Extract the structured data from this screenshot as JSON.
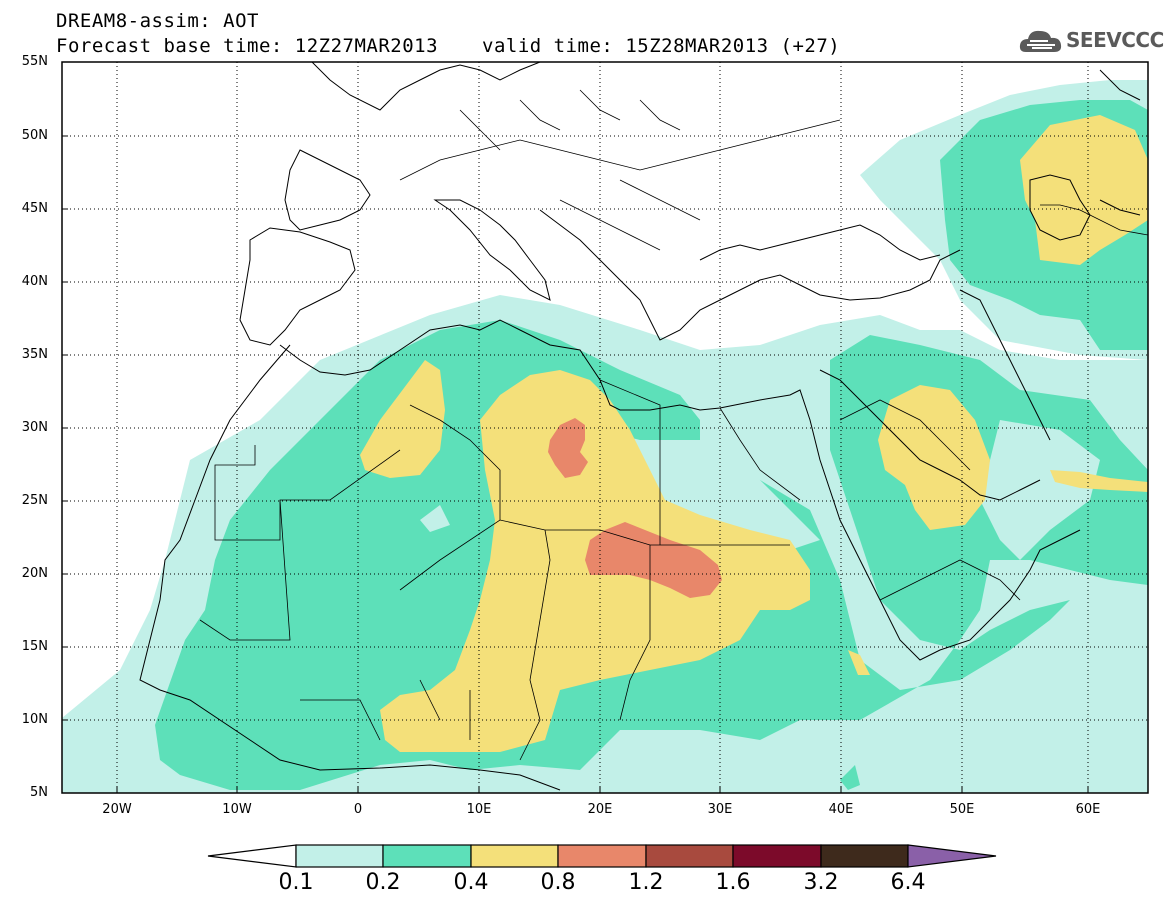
{
  "header": {
    "product": "DREAM8-assim: AOT",
    "base_time_label": "Forecast base time: 12Z27MAR2013",
    "valid_time_label": "valid time: 15Z28MAR2013 (+27)"
  },
  "logo": {
    "text": "SEEVCCC",
    "icon": "cloud-icon",
    "color": "#5a5a5a"
  },
  "map": {
    "lon_range": [
      -25,
      65
    ],
    "lat_range": [
      5,
      55
    ],
    "lat_labels": [
      "55N",
      "50N",
      "45N",
      "40N",
      "35N",
      "30N",
      "25N",
      "20N",
      "15N",
      "10N",
      "5N"
    ],
    "lon_labels": [
      "20W",
      "10W",
      "0",
      "10E",
      "20E",
      "30E",
      "40E",
      "50E",
      "60E"
    ]
  },
  "colorbar": {
    "labels": [
      "0.1",
      "0.2",
      "0.4",
      "0.8",
      "1.2",
      "1.6",
      "3.2",
      "6.4"
    ],
    "colors": [
      "#ffffff",
      "#c2f0e8",
      "#5de0b9",
      "#f4e07a",
      "#e8876a",
      "#a84a3e",
      "#7c0a2a",
      "#3e2a1c",
      "#8a60a8"
    ]
  }
}
